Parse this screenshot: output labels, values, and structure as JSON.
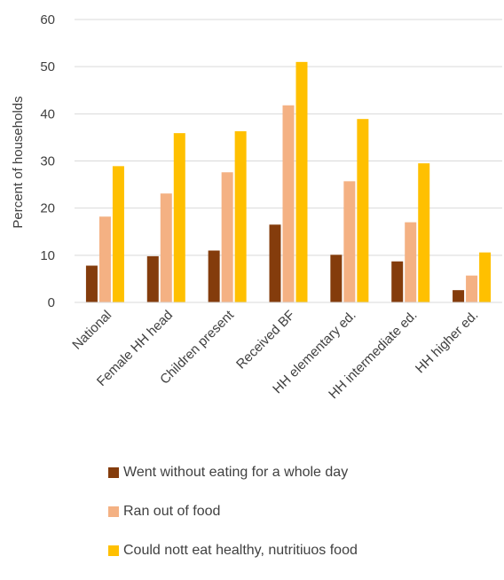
{
  "chart_data": {
    "type": "bar",
    "title": "",
    "xlabel": "",
    "ylabel": "Percent of households",
    "ylim": [
      0,
      60
    ],
    "yticks": [
      0,
      10,
      20,
      30,
      40,
      50,
      60
    ],
    "ytick_labels": [
      "0",
      "10",
      "20",
      "30",
      "40",
      "50",
      "60"
    ],
    "grid": true,
    "legend_position": "bottom",
    "categories": [
      "National",
      "Female HH head",
      "Children present",
      "Received BF",
      "HH elementary ed.",
      "HH intermediate ed.",
      "HH higher ed."
    ],
    "series": [
      {
        "name": "Went without eating for a whole day",
        "color": "#843c0c",
        "values": [
          7.8,
          9.8,
          11.0,
          16.5,
          10.1,
          8.7,
          2.6
        ]
      },
      {
        "name": "Ran out of food",
        "color": "#f4b183",
        "values": [
          18.2,
          23.1,
          27.6,
          41.8,
          25.7,
          17.0,
          5.7
        ]
      },
      {
        "name": "Could nott eat healthy, nutritiuos food",
        "color": "#ffc000",
        "values": [
          28.9,
          35.9,
          36.3,
          51.0,
          38.9,
          29.5,
          10.6
        ]
      }
    ]
  }
}
